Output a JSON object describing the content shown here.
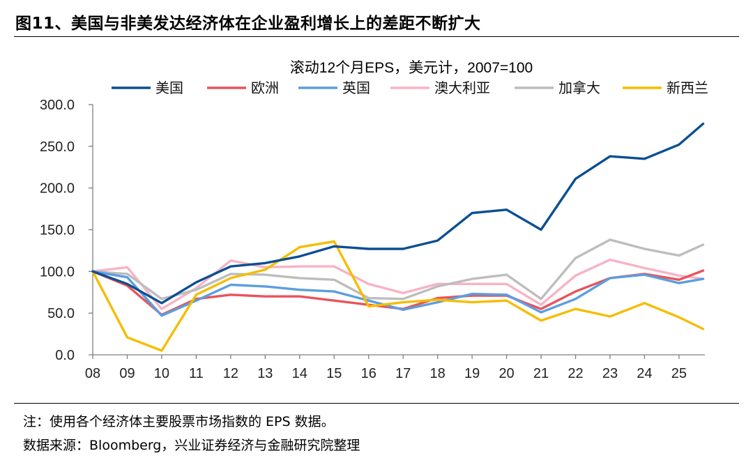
{
  "figure": {
    "title": "图11、美国与非美发达经济体在企业盈利增长上的差距不断扩大",
    "note": "注：使用各个经济体主要股票市场指数的 EPS 数据。",
    "source": "数据来源：Bloomberg，兴业证券经济与金融研究院整理"
  },
  "chart_data": {
    "type": "line",
    "title": "滚动12个月EPS，美元计，2007=100",
    "xlabel": "",
    "ylabel": "",
    "x": [
      2008,
      2009,
      2010,
      2011,
      2012,
      2013,
      2014,
      2015,
      2016,
      2017,
      2018,
      2019,
      2020,
      2021,
      2022,
      2023,
      2024,
      2025,
      2025.7
    ],
    "x_ticks": [
      2008,
      2009,
      2010,
      2011,
      2012,
      2013,
      2014,
      2015,
      2016,
      2017,
      2018,
      2019,
      2020,
      2021,
      2022,
      2023,
      2024,
      2025
    ],
    "x_tick_labels": [
      "08",
      "09",
      "10",
      "11",
      "12",
      "13",
      "14",
      "15",
      "16",
      "17",
      "18",
      "19",
      "20",
      "21",
      "22",
      "23",
      "24",
      "25"
    ],
    "xlim": [
      2008,
      2025.75
    ],
    "ylim": [
      0,
      300
    ],
    "y_ticks": [
      0,
      50,
      100,
      150,
      200,
      250,
      300
    ],
    "y_tick_labels": [
      "0.0",
      "50.0",
      "100.0",
      "150.0",
      "200.0",
      "250.0",
      "300.0"
    ],
    "legend_position": "top",
    "grid": false,
    "series": [
      {
        "name": "美国",
        "color": "#0b4f93",
        "values": [
          100,
          85,
          62,
          87,
          106,
          110,
          118,
          130,
          127,
          127,
          137,
          170,
          174,
          150,
          211,
          238,
          235,
          252,
          277
        ]
      },
      {
        "name": "欧洲",
        "color": "#e8545a",
        "values": [
          100,
          83,
          48,
          67,
          72,
          70,
          70,
          65,
          60,
          55,
          68,
          71,
          71,
          55,
          76,
          92,
          97,
          90,
          101
        ]
      },
      {
        "name": "英国",
        "color": "#5b9ee0",
        "values": [
          100,
          93,
          47,
          65,
          84,
          82,
          78,
          76,
          65,
          54,
          63,
          73,
          72,
          51,
          67,
          92,
          96,
          86,
          91
        ]
      },
      {
        "name": "澳大利亚",
        "color": "#f7b3c5",
        "values": [
          100,
          105,
          55,
          80,
          113,
          105,
          106,
          106,
          85,
          74,
          85,
          85,
          85,
          60,
          95,
          114,
          104,
          95,
          91
        ]
      },
      {
        "name": "加拿大",
        "color": "#bdbdbd",
        "values": [
          100,
          97,
          67,
          78,
          97,
          96,
          92,
          90,
          68,
          67,
          82,
          91,
          96,
          67,
          116,
          138,
          127,
          119,
          132
        ]
      },
      {
        "name": "新西兰",
        "color": "#f5bd00",
        "values": [
          100,
          21,
          5,
          72,
          92,
          102,
          129,
          136,
          58,
          63,
          66,
          63,
          65,
          41,
          55,
          46,
          62,
          45,
          31
        ]
      }
    ]
  }
}
